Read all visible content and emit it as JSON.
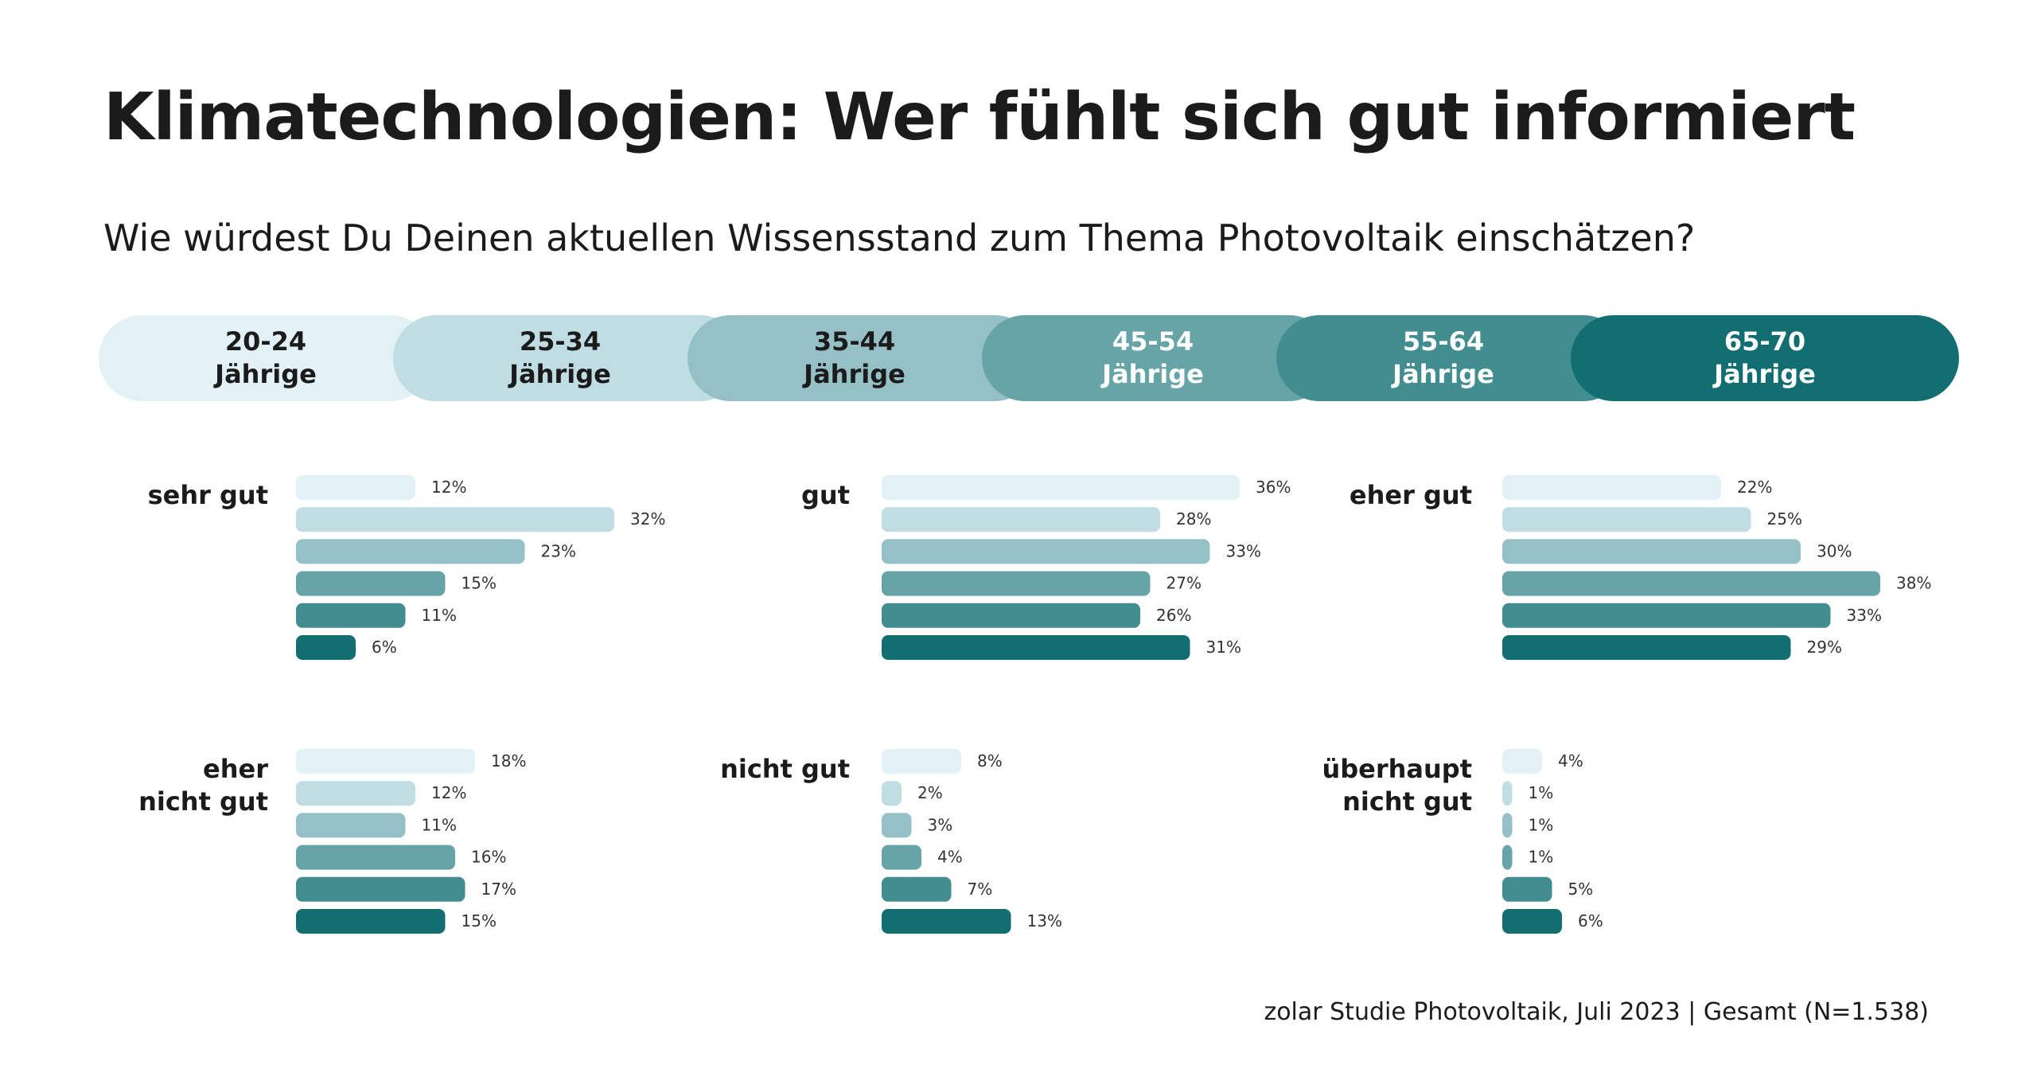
{
  "title": "Klimatechnologien: Wer fühlt sich gut informiert",
  "subtitle": "Wie würdest Du Deinen aktuellen Wissensstand zum Thema Photovoltaik einschätzen?",
  "source": "zolar Studie Photovoltaik, Juli 2023 | Gesamt (N=1.538)",
  "colors": [
    "#e1f1f5",
    "#bfdde2",
    "#94c0c6",
    "#66a4a8",
    "#428d8f",
    "#136e72"
  ],
  "legend_text_colors": [
    "#1b1b1b",
    "#1b1b1b",
    "#1b1b1b",
    "#ffffff",
    "#ffffff",
    "#ffffff"
  ],
  "legend": [
    {
      "line1": "20-24",
      "line2": "Jährige"
    },
    {
      "line1": "25-34",
      "line2": "Jährige"
    },
    {
      "line1": "35-44",
      "line2": "Jährige"
    },
    {
      "line1": "45-54",
      "line2": "Jährige"
    },
    {
      "line1": "55-64",
      "line2": "Jährige"
    },
    {
      "line1": "65-70",
      "line2": "Jährige"
    }
  ],
  "chart_data": {
    "type": "bar",
    "orientation": "horizontal",
    "unit": "%",
    "series": [
      "20-24 Jährige",
      "25-34 Jährige",
      "35-44 Jährige",
      "45-54 Jährige",
      "55-64 Jährige",
      "65-70 Jährige"
    ],
    "panels": [
      {
        "category": [
          "sehr gut"
        ],
        "values": [
          12,
          32,
          23,
          15,
          11,
          6
        ],
        "labels": [
          "12%",
          "32%",
          "23%",
          "15%",
          "11%",
          "6%"
        ]
      },
      {
        "category": [
          "gut"
        ],
        "values": [
          36,
          28,
          33,
          27,
          26,
          31
        ],
        "labels": [
          "36%",
          "28%",
          "33%",
          "27%",
          "26%",
          "31%"
        ]
      },
      {
        "category": [
          "eher gut"
        ],
        "values": [
          22,
          25,
          30,
          38,
          33,
          29
        ],
        "labels": [
          "22%",
          "25%",
          "30%",
          "38%",
          "33%",
          "29%"
        ]
      },
      {
        "category": [
          "eher",
          "nicht gut"
        ],
        "values": [
          18,
          12,
          11,
          16,
          17,
          15
        ],
        "labels": [
          "18%",
          "12%",
          "11%",
          "16%",
          "17%",
          "15%"
        ]
      },
      {
        "category": [
          "nicht gut"
        ],
        "values": [
          8,
          2,
          3,
          4,
          7,
          13
        ],
        "labels": [
          "8%",
          "2%",
          "3%",
          "4%",
          "7%",
          "13%"
        ]
      },
      {
        "category": [
          "überhaupt",
          "nicht gut"
        ],
        "values": [
          4,
          1,
          1,
          1,
          5,
          6
        ],
        "labels": [
          "4%",
          "1%",
          "1%",
          "1%",
          "5%",
          "6%"
        ]
      }
    ]
  }
}
